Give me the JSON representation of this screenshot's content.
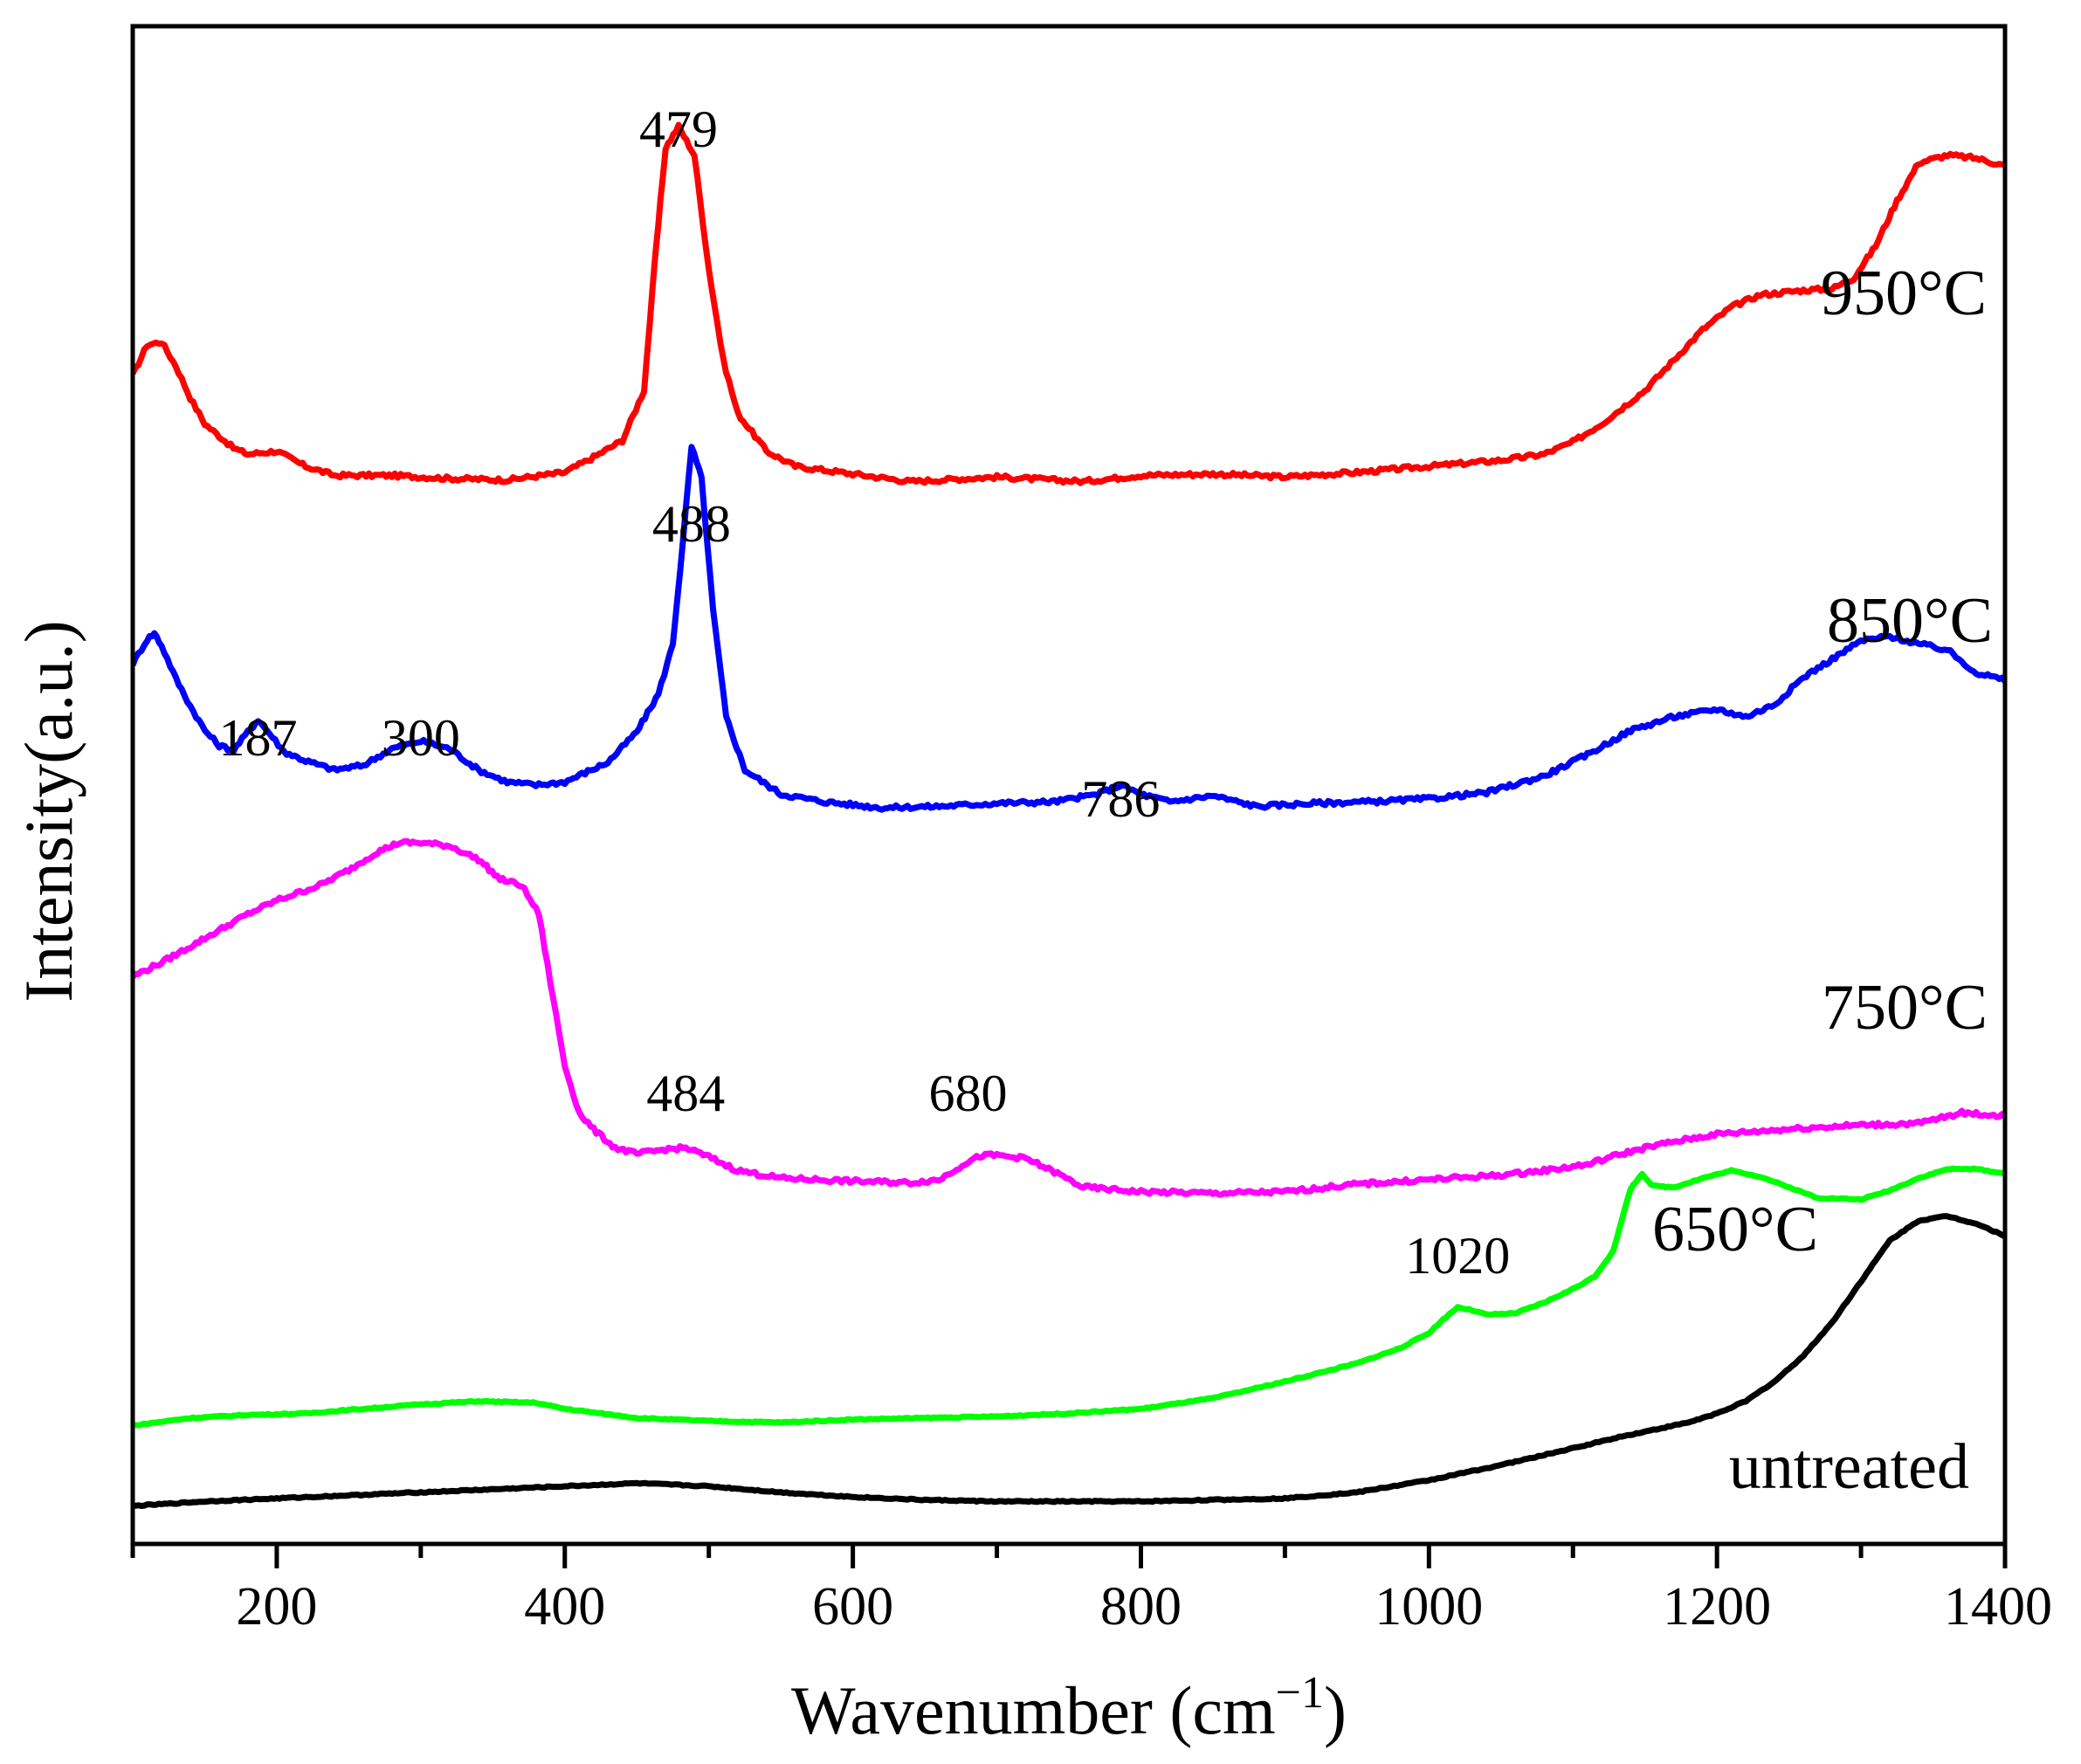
{
  "chart_data": {
    "type": "line",
    "title": "",
    "xlabel": "Wavenumber (cm",
    "xlabel_superscript": "−1",
    "xlabel_close": ")",
    "ylabel": "Intensity(a.u.)",
    "xlim": [
      100,
      1400
    ],
    "ylim": [
      0,
      100
    ],
    "x_ticks": [
      200,
      400,
      600,
      800,
      1000,
      1200,
      1400
    ],
    "y_ticks_labeled": false,
    "grid": false,
    "legend": "none (series labeled inline at right)",
    "series": [
      {
        "name": "950°C",
        "color": "#ff0000",
        "points": [
          [
            100,
            77
          ],
          [
            110,
            79
          ],
          [
            120,
            79.2
          ],
          [
            130,
            77.6
          ],
          [
            140,
            75.5
          ],
          [
            150,
            73.8
          ],
          [
            170,
            72.2
          ],
          [
            180,
            71.8
          ],
          [
            200,
            72
          ],
          [
            220,
            71
          ],
          [
            240,
            70.4
          ],
          [
            280,
            70.4
          ],
          [
            320,
            70.2
          ],
          [
            360,
            70.1
          ],
          [
            400,
            70.6
          ],
          [
            420,
            71.6
          ],
          [
            440,
            72.7
          ],
          [
            455,
            76
          ],
          [
            463,
            85
          ],
          [
            470,
            92
          ],
          [
            479,
            93.4
          ],
          [
            490,
            91.5
          ],
          [
            500,
            84
          ],
          [
            510,
            78
          ],
          [
            520,
            74.5
          ],
          [
            540,
            72
          ],
          [
            560,
            71
          ],
          [
            600,
            70.5
          ],
          [
            640,
            70
          ],
          [
            700,
            70.3
          ],
          [
            760,
            70
          ],
          [
            800,
            70.4
          ],
          [
            850,
            70.5
          ],
          [
            900,
            70.3
          ],
          [
            950,
            70.6
          ],
          [
            1000,
            71
          ],
          [
            1050,
            71.4
          ],
          [
            1080,
            71.8
          ],
          [
            1100,
            72.6
          ],
          [
            1120,
            73.8
          ],
          [
            1150,
            76
          ],
          [
            1170,
            78
          ],
          [
            1190,
            80
          ],
          [
            1210,
            81.5
          ],
          [
            1230,
            82.3
          ],
          [
            1260,
            82.6
          ],
          [
            1280,
            82.7
          ],
          [
            1295,
            83.4
          ],
          [
            1310,
            85.5
          ],
          [
            1325,
            88.5
          ],
          [
            1340,
            91
          ],
          [
            1360,
            91.5
          ],
          [
            1380,
            91.3
          ],
          [
            1400,
            90.8
          ],
          [
            1420,
            90.6
          ],
          [
            1440,
            90.2
          ],
          [
            1460,
            89.8
          ],
          [
            1480,
            89.4
          ],
          [
            1500,
            89
          ]
        ]
      },
      {
        "name": "850°C",
        "color": "#0000ff",
        "points": [
          [
            100,
            58
          ],
          [
            110,
            59.6
          ],
          [
            115,
            60
          ],
          [
            120,
            59.2
          ],
          [
            130,
            57
          ],
          [
            140,
            55.2
          ],
          [
            150,
            53.6
          ],
          [
            160,
            52.6
          ],
          [
            170,
            52.3
          ],
          [
            180,
            53.5
          ],
          [
            187,
            54.3
          ],
          [
            195,
            53.4
          ],
          [
            205,
            52.2
          ],
          [
            220,
            51.6
          ],
          [
            240,
            51
          ],
          [
            260,
            51.3
          ],
          [
            280,
            52.4
          ],
          [
            300,
            52.9
          ],
          [
            320,
            52.4
          ],
          [
            340,
            51
          ],
          [
            360,
            50.2
          ],
          [
            380,
            50
          ],
          [
            400,
            50.2
          ],
          [
            430,
            51.5
          ],
          [
            450,
            53.5
          ],
          [
            465,
            56
          ],
          [
            475,
            59.3
          ],
          [
            482,
            66
          ],
          [
            488,
            72.3
          ],
          [
            495,
            70.2
          ],
          [
            503,
            61.5
          ],
          [
            512,
            54.5
          ],
          [
            525,
            51
          ],
          [
            550,
            49.4
          ],
          [
            580,
            48.9
          ],
          [
            620,
            48.5
          ],
          [
            660,
            48.6
          ],
          [
            700,
            48.8
          ],
          [
            740,
            48.9
          ],
          [
            770,
            49.4
          ],
          [
            786,
            50
          ],
          [
            800,
            49.4
          ],
          [
            820,
            48.9
          ],
          [
            850,
            49.3
          ],
          [
            880,
            48.6
          ],
          [
            920,
            48.8
          ],
          [
            960,
            48.9
          ],
          [
            1000,
            49.1
          ],
          [
            1040,
            49.5
          ],
          [
            1080,
            50.6
          ],
          [
            1110,
            52
          ],
          [
            1140,
            53.6
          ],
          [
            1170,
            54.5
          ],
          [
            1200,
            55
          ],
          [
            1220,
            54.5
          ],
          [
            1240,
            55.3
          ],
          [
            1260,
            57.1
          ],
          [
            1280,
            58.3
          ],
          [
            1300,
            59.5
          ],
          [
            1320,
            59.8
          ],
          [
            1340,
            59.3
          ],
          [
            1360,
            58.9
          ],
          [
            1380,
            57.4
          ],
          [
            1400,
            56.9
          ],
          [
            1420,
            56.7
          ],
          [
            1440,
            56.5
          ],
          [
            1460,
            56.4
          ],
          [
            1480,
            56.3
          ],
          [
            1500,
            56.2
          ]
        ]
      },
      {
        "name": "750°C",
        "color": "#ff00ff",
        "points": [
          [
            100,
            37.4
          ],
          [
            120,
            38.3
          ],
          [
            150,
            39.9
          ],
          [
            180,
            41.5
          ],
          [
            200,
            42.4
          ],
          [
            230,
            43.4
          ],
          [
            250,
            44.4
          ],
          [
            270,
            45.6
          ],
          [
            285,
            46.2
          ],
          [
            300,
            46.2
          ],
          [
            320,
            46
          ],
          [
            340,
            45.1
          ],
          [
            355,
            43.8
          ],
          [
            370,
            43.4
          ],
          [
            382,
            41.5
          ],
          [
            390,
            37
          ],
          [
            400,
            31.5
          ],
          [
            410,
            28.4
          ],
          [
            420,
            27.3
          ],
          [
            435,
            26.1
          ],
          [
            450,
            25.7
          ],
          [
            470,
            26
          ],
          [
            484,
            26.1
          ],
          [
            500,
            25.5
          ],
          [
            520,
            24.6
          ],
          [
            550,
            24.1
          ],
          [
            600,
            23.9
          ],
          [
            640,
            23.8
          ],
          [
            660,
            24
          ],
          [
            680,
            25.2
          ],
          [
            690,
            25.6
          ],
          [
            700,
            25.6
          ],
          [
            720,
            25.4
          ],
          [
            740,
            24.5
          ],
          [
            760,
            23.5
          ],
          [
            800,
            23.2
          ],
          [
            850,
            23.1
          ],
          [
            900,
            23.2
          ],
          [
            950,
            23.7
          ],
          [
            1000,
            24
          ],
          [
            1050,
            24.3
          ],
          [
            1080,
            24.6
          ],
          [
            1110,
            25
          ],
          [
            1130,
            25.6
          ],
          [
            1150,
            26.1
          ],
          [
            1170,
            26.5
          ],
          [
            1200,
            27
          ],
          [
            1230,
            27.2
          ],
          [
            1260,
            27.4
          ],
          [
            1300,
            27.6
          ],
          [
            1340,
            27.7
          ],
          [
            1370,
            28.4
          ],
          [
            1400,
            28.2
          ],
          [
            1430,
            27.8
          ],
          [
            1460,
            27.9
          ],
          [
            1500,
            28.4
          ]
        ]
      },
      {
        "name": "650°C",
        "color": "#00ff00",
        "points": [
          [
            100,
            7.8
          ],
          [
            140,
            8.3
          ],
          [
            180,
            8.5
          ],
          [
            220,
            8.6
          ],
          [
            260,
            8.9
          ],
          [
            300,
            9.2
          ],
          [
            340,
            9.4
          ],
          [
            380,
            9.3
          ],
          [
            400,
            8.9
          ],
          [
            450,
            8.3
          ],
          [
            500,
            8.1
          ],
          [
            550,
            8
          ],
          [
            600,
            8.2
          ],
          [
            650,
            8.3
          ],
          [
            700,
            8.4
          ],
          [
            750,
            8.6
          ],
          [
            800,
            8.9
          ],
          [
            850,
            9.6
          ],
          [
            900,
            10.7
          ],
          [
            950,
            11.9
          ],
          [
            980,
            12.9
          ],
          [
            1000,
            13.9
          ],
          [
            1010,
            14.8
          ],
          [
            1020,
            15.6
          ],
          [
            1030,
            15.4
          ],
          [
            1040,
            15.1
          ],
          [
            1060,
            15.2
          ],
          [
            1080,
            15.9
          ],
          [
            1100,
            16.8
          ],
          [
            1115,
            17.6
          ],
          [
            1128,
            19.3
          ],
          [
            1140,
            23.4
          ],
          [
            1148,
            24.4
          ],
          [
            1155,
            23.6
          ],
          [
            1170,
            23.5
          ],
          [
            1190,
            24.1
          ],
          [
            1210,
            24.6
          ],
          [
            1230,
            24.2
          ],
          [
            1250,
            23.5
          ],
          [
            1270,
            22.8
          ],
          [
            1300,
            22.7
          ],
          [
            1320,
            23.3
          ],
          [
            1340,
            24.1
          ],
          [
            1360,
            24.7
          ],
          [
            1380,
            24.7
          ],
          [
            1400,
            24.4
          ],
          [
            1420,
            24
          ],
          [
            1440,
            23.3
          ],
          [
            1460,
            22.8
          ],
          [
            1480,
            22.8
          ],
          [
            1500,
            23.1
          ]
        ]
      },
      {
        "name": "untreated",
        "color": "#000000",
        "points": [
          [
            100,
            2.5
          ],
          [
            150,
            2.8
          ],
          [
            200,
            3
          ],
          [
            250,
            3.2
          ],
          [
            300,
            3.4
          ],
          [
            350,
            3.6
          ],
          [
            400,
            3.8
          ],
          [
            450,
            4
          ],
          [
            500,
            3.8
          ],
          [
            550,
            3.4
          ],
          [
            600,
            3.1
          ],
          [
            650,
            2.9
          ],
          [
            700,
            2.8
          ],
          [
            750,
            2.8
          ],
          [
            800,
            2.8
          ],
          [
            850,
            2.9
          ],
          [
            900,
            3
          ],
          [
            950,
            3.4
          ],
          [
            1000,
            4.2
          ],
          [
            1050,
            5.2
          ],
          [
            1100,
            6.3
          ],
          [
            1130,
            7
          ],
          [
            1150,
            7.4
          ],
          [
            1180,
            8
          ],
          [
            1200,
            8.6
          ],
          [
            1220,
            9.4
          ],
          [
            1240,
            10.7
          ],
          [
            1260,
            12.4
          ],
          [
            1280,
            14.6
          ],
          [
            1300,
            17.3
          ],
          [
            1320,
            20
          ],
          [
            1340,
            21.3
          ],
          [
            1360,
            21.6
          ],
          [
            1380,
            21.1
          ],
          [
            1400,
            20.3
          ],
          [
            1420,
            19.6
          ],
          [
            1440,
            19
          ],
          [
            1460,
            18.6
          ],
          [
            1480,
            18.3
          ],
          [
            1500,
            18.1
          ]
        ]
      }
    ],
    "series_labels": [
      {
        "name": "950°C",
        "text": "950°C"
      },
      {
        "name": "850°C",
        "text": "850°C"
      },
      {
        "name": "750°C",
        "text": "750°C"
      },
      {
        "name": "650°C",
        "text": "650°C"
      },
      {
        "name": "untreated",
        "text": "untreated"
      }
    ],
    "annotations": [
      {
        "text": "479",
        "x": 479,
        "series": "950°C"
      },
      {
        "text": "488",
        "x": 488,
        "series": "850°C"
      },
      {
        "text": "187",
        "x": 187,
        "series": "850°C"
      },
      {
        "text": "300",
        "x": 300,
        "series": "850°C"
      },
      {
        "text": "786",
        "x": 786,
        "series": "850°C"
      },
      {
        "text": "484",
        "x": 484,
        "series": "750°C"
      },
      {
        "text": "680",
        "x": 680,
        "series": "750°C"
      },
      {
        "text": "1020",
        "x": 1020,
        "series": "650°C"
      }
    ]
  }
}
